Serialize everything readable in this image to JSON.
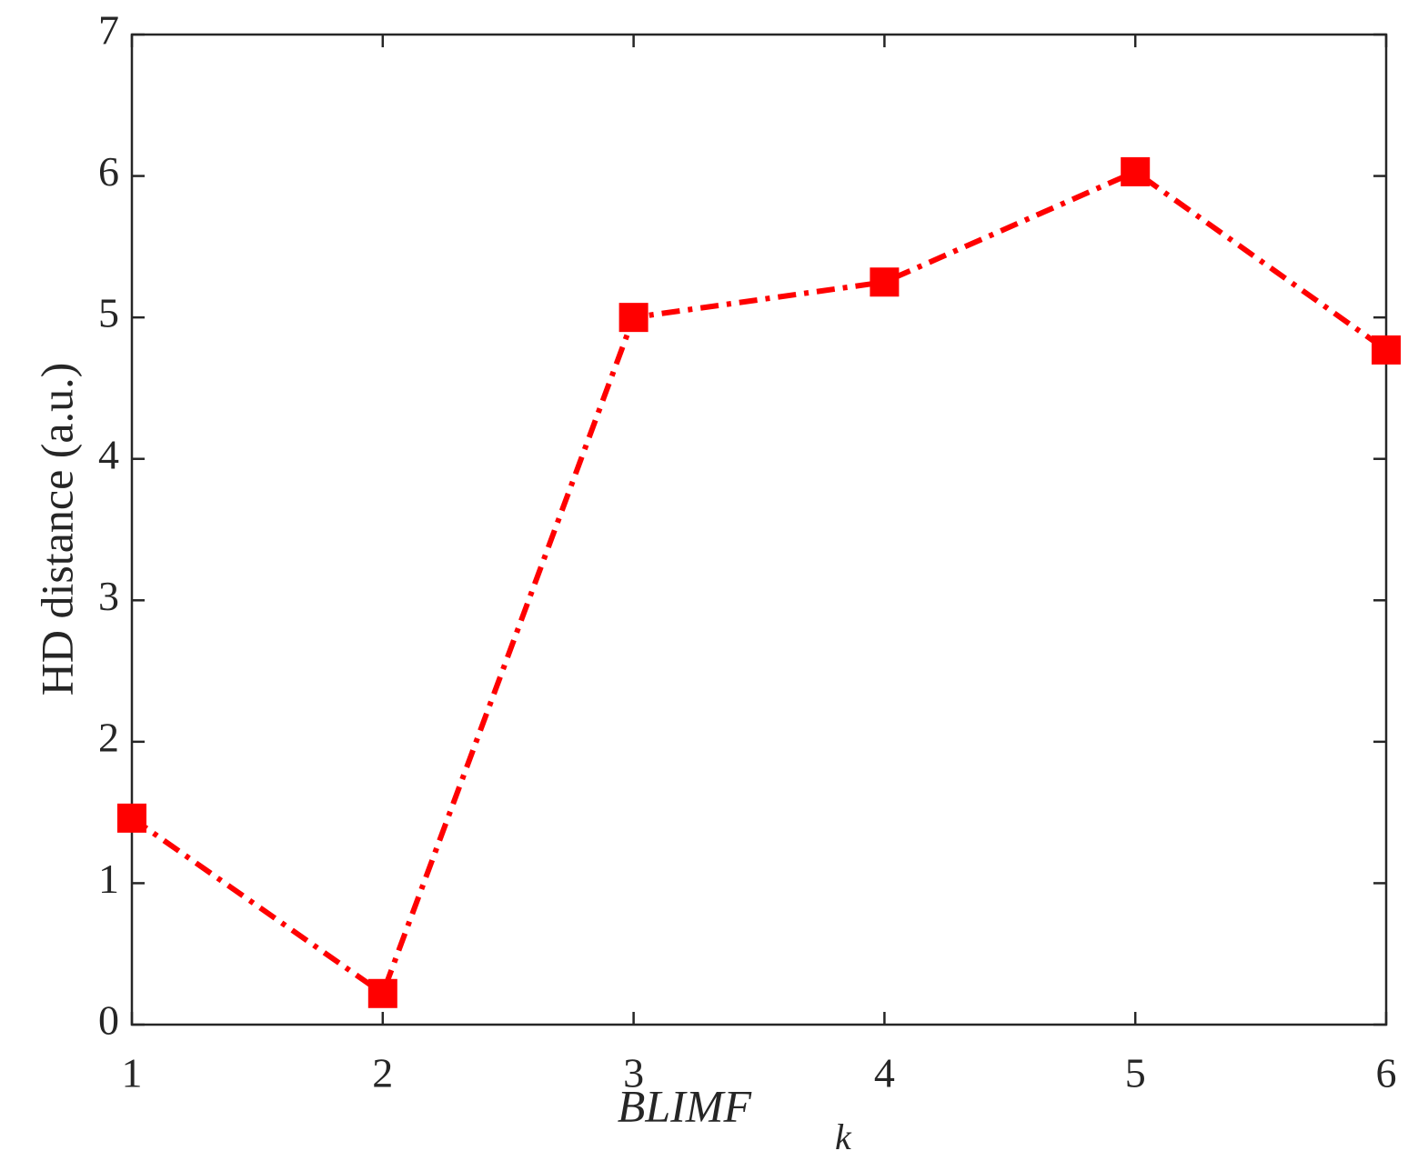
{
  "chart_data": {
    "type": "line",
    "xlabel": "BLIMF",
    "xlabel_subscript": "k",
    "ylabel": "HD distance (a.u.)",
    "x": [
      1,
      2,
      3,
      4,
      5,
      6
    ],
    "series": [
      {
        "color": "#ff0000",
        "values": [
          1.46,
          0.22,
          5.0,
          5.25,
          6.03,
          4.77
        ]
      }
    ],
    "xlim": [
      1,
      6
    ],
    "xticks": [
      1,
      2,
      3,
      4,
      5,
      6
    ],
    "ylim": [
      0,
      7
    ],
    "yticks": [
      0,
      1,
      2,
      3,
      4,
      5,
      6,
      7
    ],
    "grid": false
  }
}
